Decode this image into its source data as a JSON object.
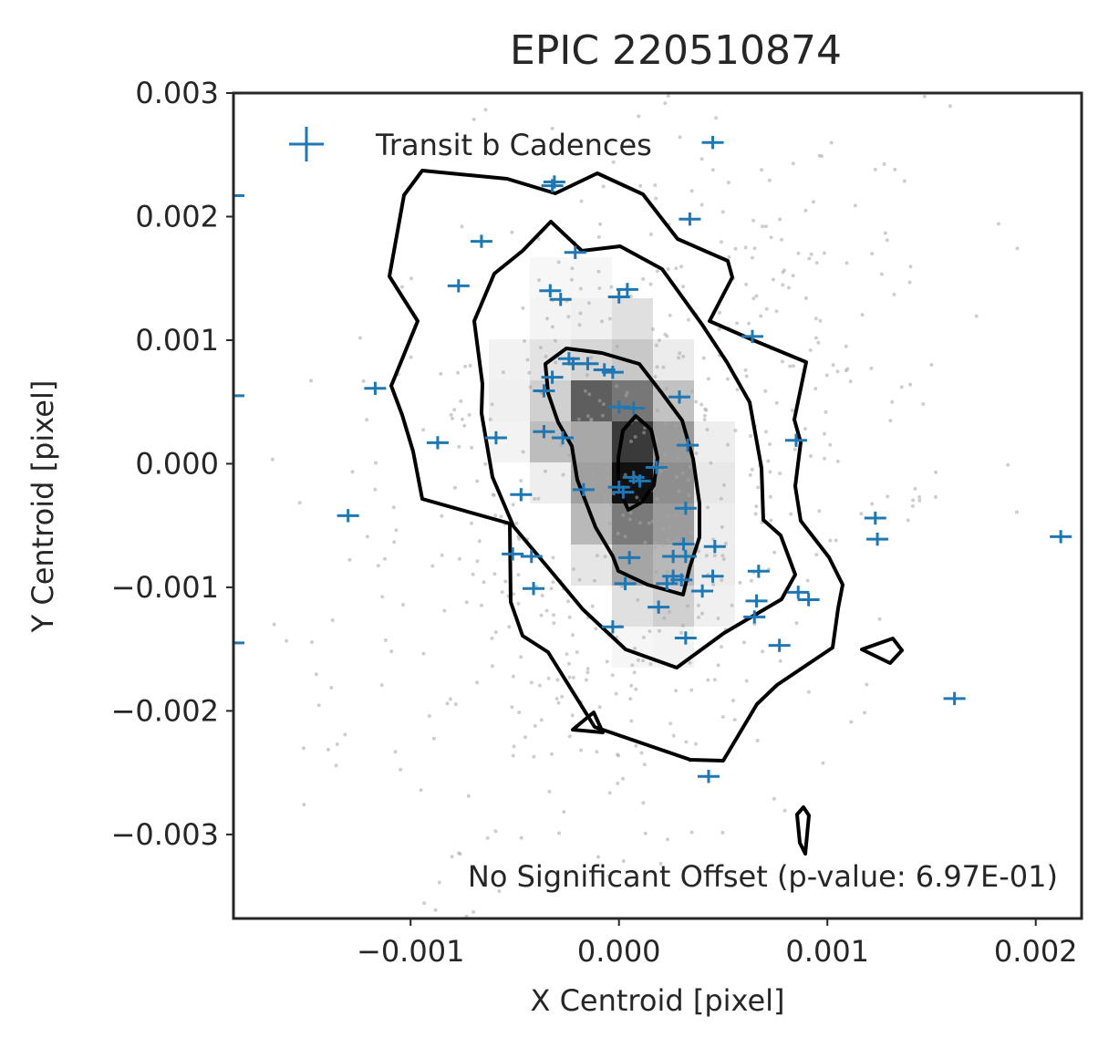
{
  "chart_data": {
    "type": "scatter",
    "title": "EPIC 220510874",
    "xlabel": "X Centroid [pixel]",
    "ylabel": "Y Centroid [pixel]",
    "xlim": [
      -0.00185,
      0.00222
    ],
    "ylim": [
      -0.00368,
      0.003
    ],
    "xticks": [
      -0.001,
      0.0,
      0.001,
      0.002
    ],
    "xtick_labels": [
      "−0.001",
      "0.000",
      "0.001",
      "0.002"
    ],
    "yticks": [
      0.003,
      0.002,
      0.001,
      0.0,
      -0.001,
      -0.002,
      -0.003
    ],
    "ytick_labels": [
      "0.003",
      "0.002",
      "0.001",
      "0.000",
      "−0.001",
      "−0.002",
      "−0.003"
    ],
    "grid": false,
    "legend": {
      "position": "top-left",
      "entries": [
        "Transit b Cadences"
      ]
    },
    "annotation": "No Significant Offset (p-value: 6.97E-01)",
    "colors": {
      "transit": "#1f77b4",
      "contour": "#000000",
      "background_points": "#9e9e9e"
    },
    "series": [
      {
        "name": "Transit b Cadences",
        "marker": "+",
        "points": [
          [
            0.00045,
            0.0026
          ],
          [
            -0.00031,
            0.00228
          ],
          [
            -0.00032,
            0.00225
          ],
          [
            0.00034,
            0.00198
          ],
          [
            -0.00066,
            0.0018
          ],
          [
            -0.00021,
            0.00171
          ],
          [
            -0.00077,
            0.00144
          ],
          [
            -0.00033,
            0.0014
          ],
          [
            -0.00028,
            0.00133
          ],
          [
            4e-05,
            0.00141
          ],
          [
            0.0,
            0.00135
          ],
          [
            0.00064,
            0.00103
          ],
          [
            -0.00024,
            0.00085
          ],
          [
            -0.00022,
            0.00081
          ],
          [
            -0.00015,
            0.00081
          ],
          [
            -7e-05,
            0.00076
          ],
          [
            -3e-05,
            0.00074
          ],
          [
            -0.00032,
            0.0007
          ],
          [
            -0.00036,
            0.00059
          ],
          [
            -0.00117,
            0.00061
          ],
          [
            0.00029,
            0.00054
          ],
          [
            0.0,
            0.00046
          ],
          [
            7e-05,
            0.00045
          ],
          [
            -0.00036,
            0.00026
          ],
          [
            -0.00027,
            0.00021
          ],
          [
            -0.00059,
            0.00021
          ],
          [
            -0.00087,
            0.00017
          ],
          [
            0.00033,
            0.00015
          ],
          [
            0.00085,
            0.00019
          ],
          [
            0.00018,
            -3e-05
          ],
          [
            7e-05,
            -0.00011
          ],
          [
            0.0001,
            -0.00014
          ],
          [
            -0.0,
            -0.00019
          ],
          [
            2e-05,
            -0.00023
          ],
          [
            -0.00047,
            -0.00025
          ],
          [
            -0.00017,
            -0.00021
          ],
          [
            0.00032,
            -0.00036
          ],
          [
            -0.0013,
            -0.00042
          ],
          [
            0.00123,
            -0.00044
          ],
          [
            0.00124,
            -0.00061
          ],
          [
            0.00212,
            -0.00059
          ],
          [
            0.00031,
            -0.00065
          ],
          [
            0.00046,
            -0.00067
          ],
          [
            -0.00051,
            -0.00073
          ],
          [
            -0.00042,
            -0.00075
          ],
          [
            5e-05,
            -0.00076
          ],
          [
            0.00026,
            -0.00075
          ],
          [
            0.00032,
            -0.00075
          ],
          [
            0.00067,
            -0.00087
          ],
          [
            0.00026,
            -0.00091
          ],
          [
            0.00045,
            -0.00091
          ],
          [
            0.0003,
            -0.00094
          ],
          [
            -0.00041,
            -0.00101
          ],
          [
            3e-05,
            -0.00097
          ],
          [
            0.00023,
            -0.00097
          ],
          [
            0.0004,
            -0.00103
          ],
          [
            0.00086,
            -0.00104
          ],
          [
            0.00091,
            -0.0011
          ],
          [
            0.00066,
            -0.00111
          ],
          [
            0.00019,
            -0.00116
          ],
          [
            0.00065,
            -0.00124
          ],
          [
            -3e-05,
            -0.00132
          ],
          [
            0.00032,
            -0.00141
          ],
          [
            0.00077,
            -0.00147
          ],
          [
            -0.00185,
            -0.00145
          ],
          [
            0.00161,
            -0.0019
          ],
          [
            0.00043,
            -0.00253
          ],
          [
            -0.00185,
            0.00055
          ],
          [
            -0.00185,
            0.00217
          ]
        ]
      }
    ]
  }
}
